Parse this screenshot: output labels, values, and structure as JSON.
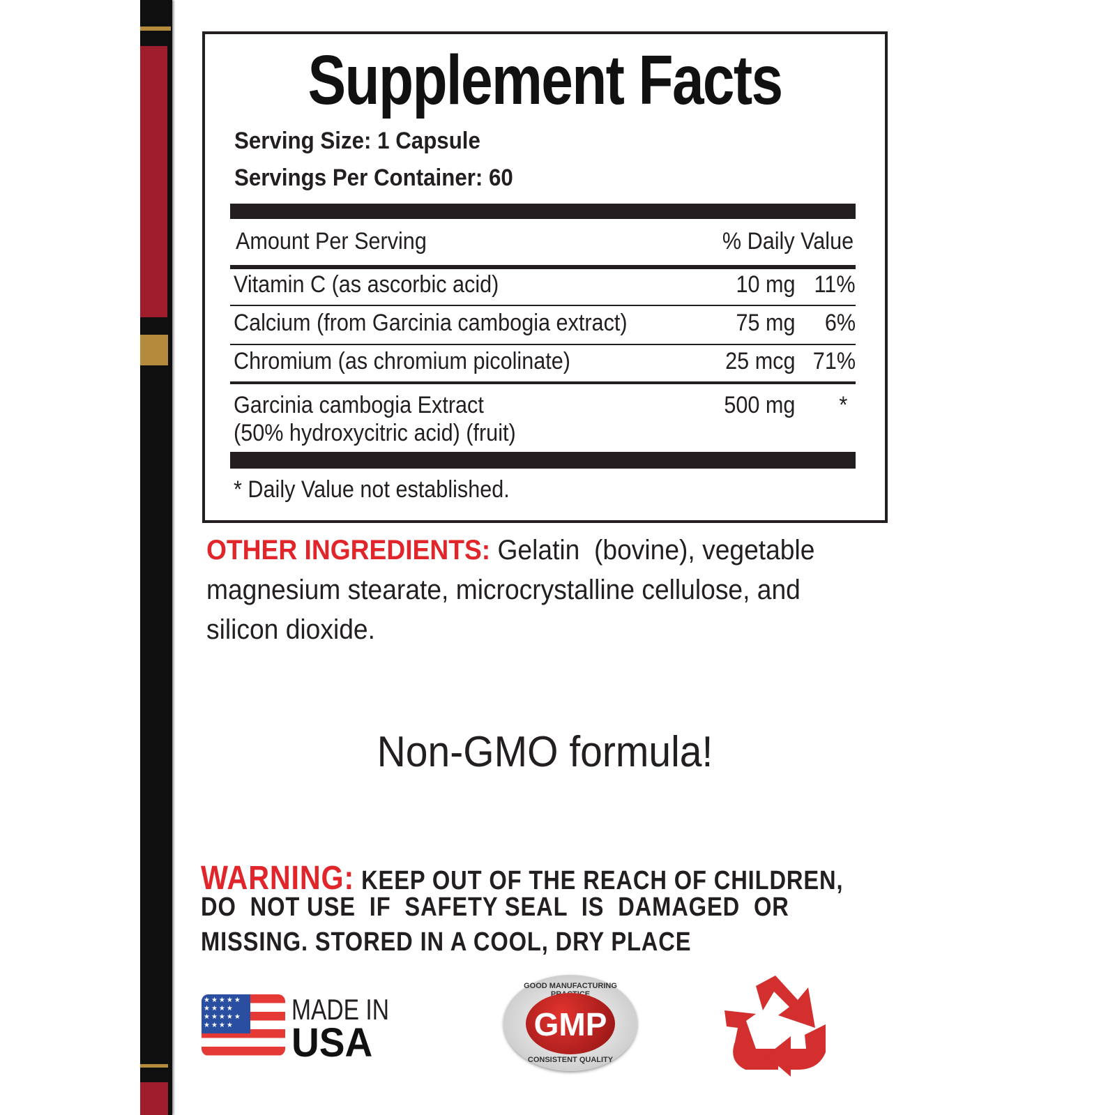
{
  "label": {
    "title": "Supplement Facts",
    "serving_size": "Serving Size: 1 Capsule",
    "servings_per_container": "Servings Per Container: 60",
    "amount_header": "Amount Per Serving",
    "dv_header": "% Daily Value",
    "rows": [
      {
        "name": "Vitamin C (as ascorbic acid)",
        "amount": "10 mg",
        "dv": "11%"
      },
      {
        "name": "Calcium (from Garcinia cambogia extract)",
        "amount": "75 mg",
        "dv": "6%"
      },
      {
        "name": "Chromium (as chromium picolinate)",
        "amount": "25 mcg",
        "dv": "71%"
      },
      {
        "name": "Garcinia cambogia Extract",
        "name2": "(50% hydroxycitric acid) (fruit)",
        "amount": "500 mg",
        "dv": "*"
      }
    ],
    "footnote": "* Daily Value not established."
  },
  "other_ingredients": {
    "label": "OTHER INGREDIENTS:",
    "line1": "Gelatin  (bovine), vegetable",
    "line2": "magnesium stearate, microcrystalline cellulose, and",
    "line3": "silicon dioxide."
  },
  "tagline": "Non-GMO formula!",
  "warning": {
    "label": "WARNING:",
    "line1": "KEEP OUT OF THE REACH OF CHILDREN,",
    "line2": "DO  NOT USE  IF  SAFETY SEAL  IS  DAMAGED  OR",
    "line3": "MISSING. STORED IN A COOL, DRY PLACE"
  },
  "badges": {
    "usa_line1": "MADE IN",
    "usa_line2": "USA",
    "gmp_text": "GMP",
    "gmp_top": "GOOD MANUFACTURING PRACTICE",
    "gmp_bottom": "CONSISTENT QUALITY",
    "recycle_icon": "recycle-icon"
  },
  "colors": {
    "accent_red": "#e0262b",
    "side_red": "#9e1c2c",
    "side_gold": "#b48a3c"
  }
}
